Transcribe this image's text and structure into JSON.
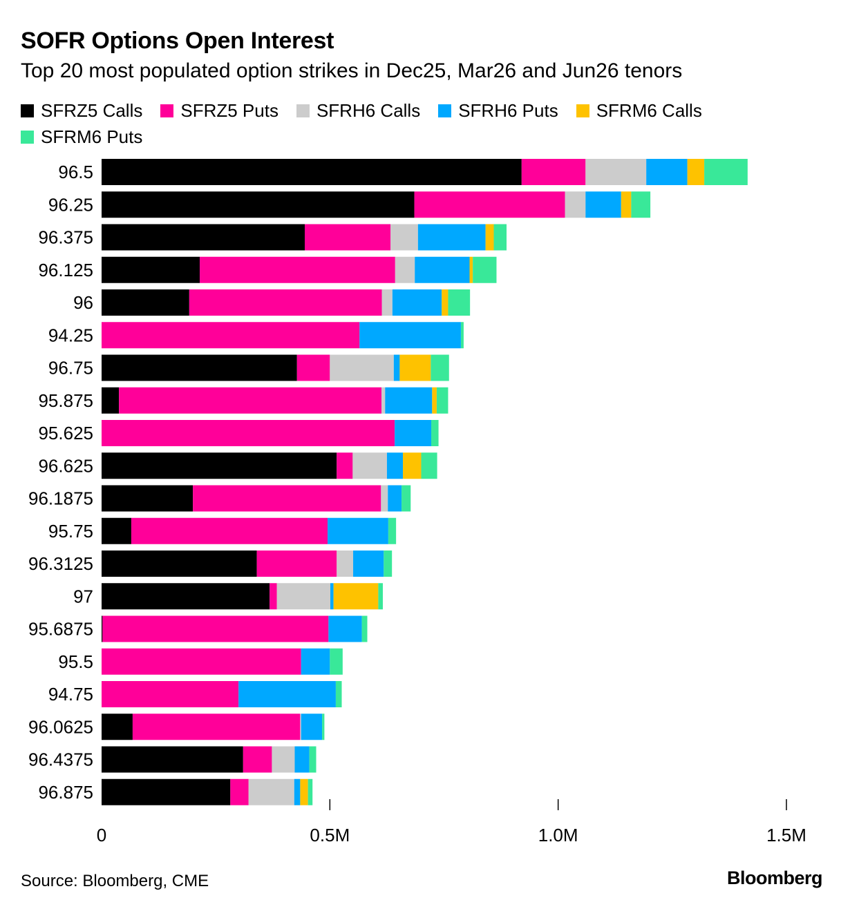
{
  "title": "SOFR Options Open Interest",
  "subtitle": "Top 20 most populated option strikes in Dec25, Mar26 and Jun26 tenors",
  "source": "Source: Bloomberg, CME",
  "brand": "Bloomberg",
  "chart_data": {
    "type": "bar",
    "orientation": "horizontal",
    "stacked": true,
    "title": "SOFR Options Open Interest",
    "xlabel": "",
    "ylabel": "",
    "xlim": [
      0,
      1500000
    ],
    "x_ticks": [
      0,
      500000,
      1000000,
      1500000
    ],
    "x_tick_labels": [
      "0",
      "0.5M",
      "1.0M",
      "1.5M"
    ],
    "grid": false,
    "legend_position": "top",
    "categories": [
      "96.5",
      "96.25",
      "96.375",
      "96.125",
      "96",
      "94.25",
      "96.75",
      "95.875",
      "95.625",
      "96.625",
      "96.1875",
      "95.75",
      "96.3125",
      "97",
      "95.6875",
      "95.5",
      "94.75",
      "96.0625",
      "96.4375",
      "96.875"
    ],
    "series": [
      {
        "name": "SFRZ5 Calls",
        "color": "#000000",
        "values": [
          920000,
          685000,
          445000,
          215000,
          192000,
          0,
          428000,
          38000,
          0,
          515000,
          200000,
          65000,
          340000,
          368000,
          2000,
          0,
          0,
          68000,
          310000,
          282000
        ]
      },
      {
        "name": "SFRZ5 Puts",
        "color": "#ff0099",
        "values": [
          140000,
          330000,
          188000,
          428000,
          422000,
          565000,
          72000,
          575000,
          642000,
          35000,
          412000,
          430000,
          175000,
          16000,
          495000,
          437000,
          300000,
          367000,
          63000,
          40000
        ]
      },
      {
        "name": "SFRH6 Calls",
        "color": "#cccccc",
        "values": [
          133000,
          45000,
          60000,
          43000,
          23000,
          0,
          140000,
          8000,
          0,
          75000,
          15000,
          0,
          36000,
          117000,
          0,
          0,
          0,
          2000,
          50000,
          100000
        ]
      },
      {
        "name": "SFRH6 Puts",
        "color": "#00a8ff",
        "values": [
          90000,
          78000,
          148000,
          120000,
          108000,
          222000,
          13000,
          103000,
          80000,
          35000,
          30000,
          133000,
          67000,
          7000,
          73000,
          63000,
          213000,
          46000,
          32000,
          13000
        ]
      },
      {
        "name": "SFRM6 Calls",
        "color": "#fec200",
        "values": [
          37000,
          22000,
          18000,
          7000,
          14000,
          0,
          68000,
          10000,
          0,
          40000,
          0,
          0,
          0,
          98000,
          0,
          0,
          0,
          0,
          0,
          17000
        ]
      },
      {
        "name": "SFRM6 Puts",
        "color": "#39e899",
        "values": [
          95000,
          42000,
          28000,
          52000,
          48000,
          6000,
          40000,
          25000,
          16000,
          35000,
          20000,
          17000,
          18000,
          10000,
          12000,
          28000,
          13000,
          5000,
          15000,
          10000
        ]
      }
    ]
  }
}
